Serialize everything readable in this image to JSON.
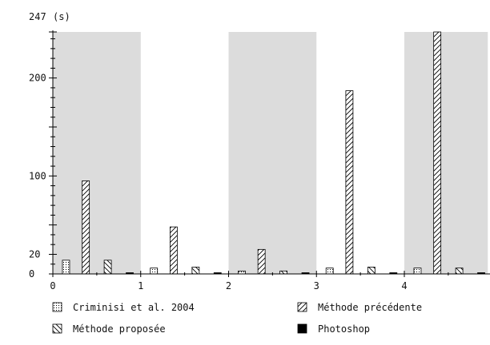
{
  "chart_data": {
    "type": "bar",
    "title": "",
    "xlabel": "",
    "ylabel": "(s)",
    "y_max_label": "247",
    "y_ticks": [
      0,
      20,
      100,
      200
    ],
    "x_ticks": [
      0,
      1,
      2,
      3,
      4
    ],
    "ylim": [
      0,
      247
    ],
    "xlim": [
      0,
      4.95
    ],
    "grid": false,
    "background_bands": [
      [
        0,
        1
      ],
      [
        2,
        3
      ],
      [
        4,
        4.95
      ]
    ],
    "band_color": "#dcdcdc",
    "groups": [
      0,
      1,
      2,
      3,
      4
    ],
    "series": [
      {
        "name": "Criminisi et al. 2004",
        "pattern": "dots",
        "values": [
          14,
          6,
          3,
          6,
          6
        ]
      },
      {
        "name": "Méthode précédente",
        "pattern": "hatch-up",
        "values": [
          95,
          48,
          25,
          187,
          247
        ]
      },
      {
        "name": "Méthode proposée",
        "pattern": "hatch-down",
        "values": [
          14,
          7,
          3,
          7,
          6
        ]
      },
      {
        "name": "Photoshop",
        "pattern": "solid",
        "values": [
          1,
          1,
          1,
          1,
          1
        ]
      }
    ],
    "legend": {
      "position": "bottom",
      "columns": 2
    }
  }
}
